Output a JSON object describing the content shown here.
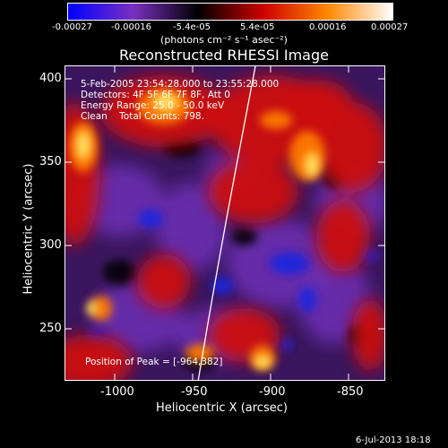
{
  "colorbar": {
    "ticks": [
      "-0.00027",
      "-0.00016",
      "-5.4e-05",
      "5.4e-05",
      "0.00016",
      "0.00027"
    ],
    "units": "(photons cm⁻² s⁻¹ asec⁻²)",
    "colors": [
      "#0000ff",
      "#7a2fc0",
      "#000000",
      "#cc0000",
      "#ff8800",
      "#ffffff"
    ]
  },
  "title": "Reconstructed RHESSI Image",
  "info": {
    "time_range": "5-Feb-2005 23:54:28.000 to 23:55:28.000",
    "detectors": "Detectors: 4F 5F 6F 7F 8F, Att 0",
    "energy": "Energy Range: 25.0 - 50.0 keV",
    "clean": "Clean    Total Counts: 798."
  },
  "peak": "Position of Peak = [-964,382]",
  "axes": {
    "xlabel": "Heliocentric X (arcsec)",
    "ylabel": "Heliocentric Y (arcsec)",
    "x_ticks": [
      "-1000",
      "-950",
      "-900",
      "-850"
    ],
    "y_ticks": [
      "250",
      "300",
      "350",
      "400"
    ]
  },
  "footer": "6-Jul-2013 18:18"
}
